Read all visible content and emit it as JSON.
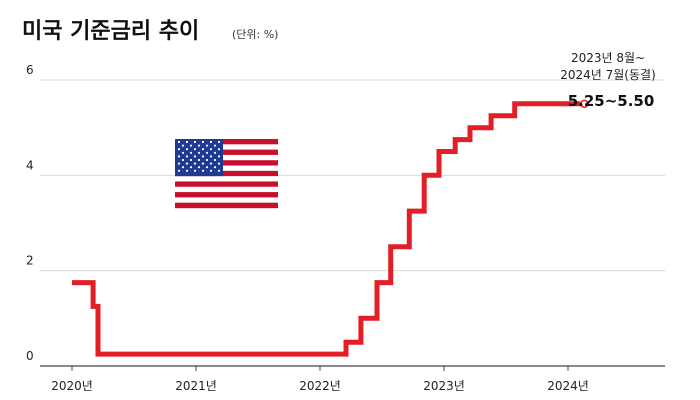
{
  "chart_data": {
    "type": "line",
    "title": "미국 기준금리 추이",
    "unit": "(단위: %)",
    "ylim": [
      0,
      6
    ],
    "yticks": [
      "0",
      "2",
      "4",
      "6"
    ],
    "xticks": [
      {
        "label": "2020년",
        "x": 2020.0
      },
      {
        "label": "2021년",
        "x": 2021.0
      },
      {
        "label": "2022년",
        "x": 2022.0
      },
      {
        "label": "2023년",
        "x": 2023.0
      },
      {
        "label": "2024년",
        "x": 2024.0
      }
    ],
    "grid": true,
    "series": [
      {
        "name": "",
        "color": "#e21e26",
        "step": true,
        "points": [
          [
            2020.0,
            1.75
          ],
          [
            2020.17,
            1.25
          ],
          [
            2020.21,
            0.25
          ],
          [
            2022.21,
            0.5
          ],
          [
            2022.33,
            1.0
          ],
          [
            2022.46,
            1.75
          ],
          [
            2022.57,
            2.5
          ],
          [
            2022.72,
            3.25
          ],
          [
            2022.84,
            4.0
          ],
          [
            2022.96,
            4.5
          ],
          [
            2023.09,
            4.75
          ],
          [
            2023.21,
            5.0
          ],
          [
            2023.38,
            5.25
          ],
          [
            2023.57,
            5.5
          ],
          [
            2024.1,
            5.5
          ]
        ]
      }
    ],
    "annotation": {
      "period": [
        "2023년 8월~",
        "2024년 7월(동결)"
      ],
      "value": "5.25~5.50"
    }
  },
  "icons": {
    "flag": "us-flag-icon"
  }
}
